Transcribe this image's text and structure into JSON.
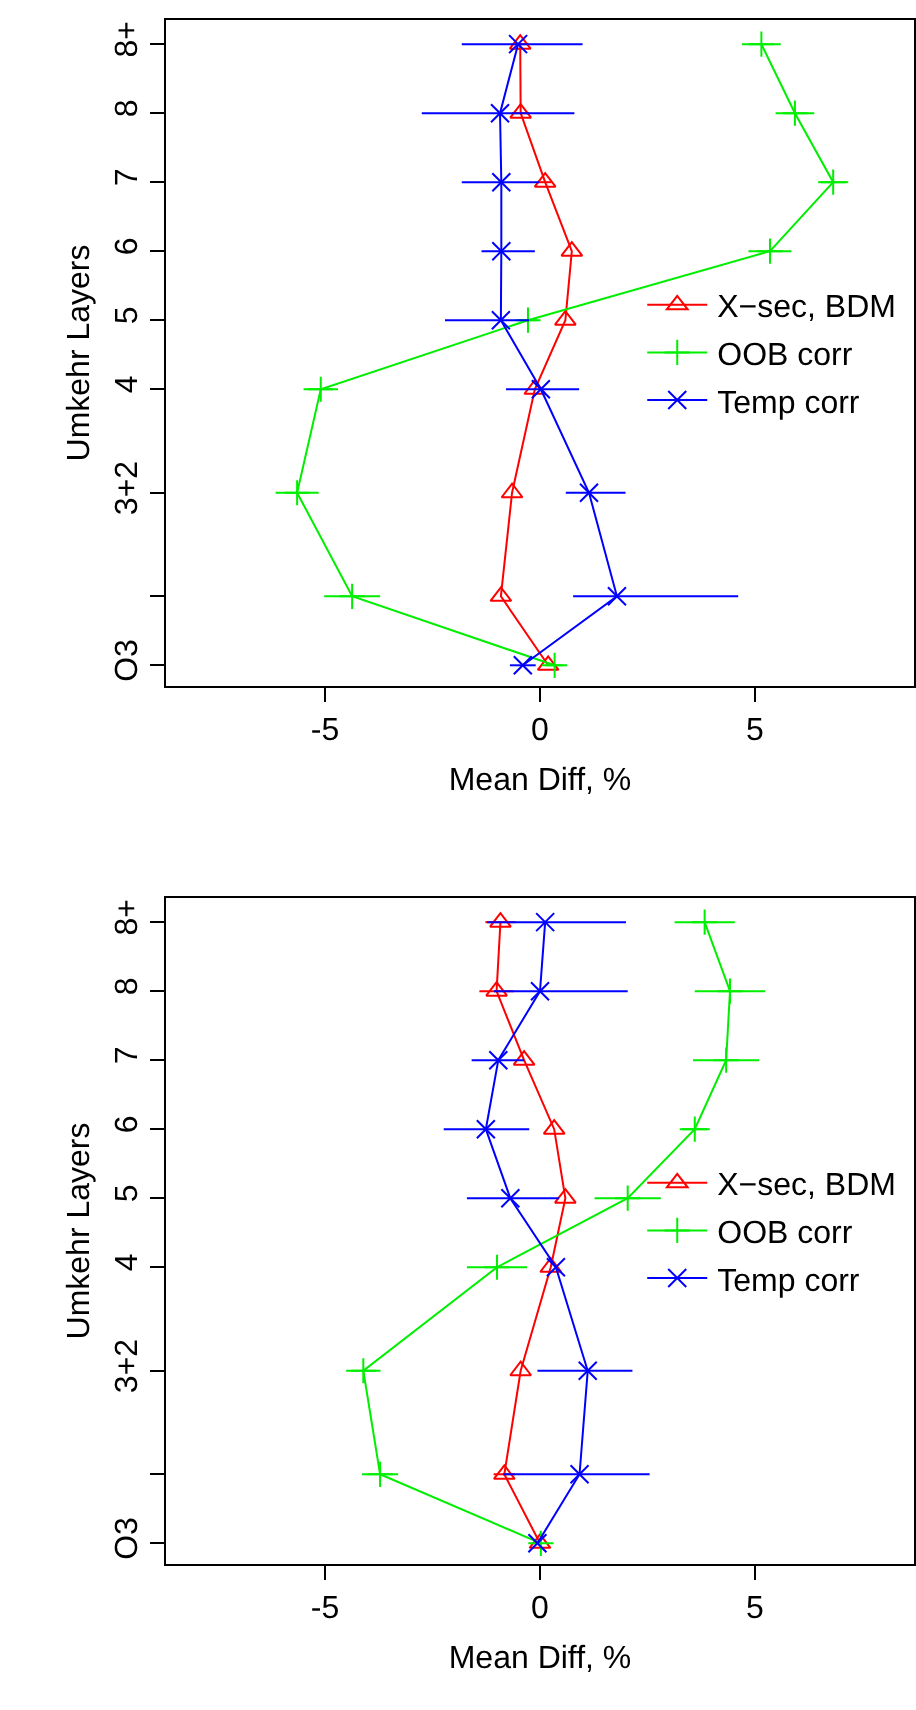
{
  "chart_data": [
    {
      "type": "line",
      "orientation": "horizontal",
      "xlabel": "Mean Diff, %",
      "ylabel": "Umkehr Layers",
      "x": [
        0,
        1,
        2.5,
        4,
        5,
        6,
        7,
        8,
        9
      ],
      "xlim": [
        -8.7,
        8.7
      ],
      "xticks": [
        -5,
        0,
        5
      ],
      "ylim": [
        -0.3,
        9.35
      ],
      "yticks": [
        {
          "value": 0,
          "label": "O3"
        },
        {
          "value": 1,
          "label": null
        },
        {
          "value": 2.5,
          "label": "3+2"
        },
        {
          "value": 4,
          "label": "4"
        },
        {
          "value": 5,
          "label": "5"
        },
        {
          "value": 6,
          "label": "6"
        },
        {
          "value": 7,
          "label": "7"
        },
        {
          "value": 8,
          "label": "8"
        },
        {
          "value": 9,
          "label": "8+"
        }
      ],
      "grid": false,
      "legend": "right",
      "series": [
        {
          "name": "X−sec, BDM",
          "color": "#ff0000",
          "marker": "triangle",
          "values": [
            0.19,
            -0.91,
            -0.65,
            -0.12,
            0.59,
            0.74,
            0.12,
            -0.45,
            -0.46
          ],
          "errors": [
            null,
            null,
            null,
            null,
            null,
            null,
            0.15,
            0.2,
            0.2
          ]
        },
        {
          "name": "OOB corr",
          "color": "#00ee00",
          "marker": "plus",
          "values": [
            0.34,
            -4.37,
            -5.65,
            -5.1,
            -0.28,
            5.35,
            6.82,
            5.93,
            5.15
          ],
          "errors": [
            0.2,
            0.65,
            0.5,
            0.4,
            0.2,
            0.5,
            0.35,
            0.45,
            0.45
          ]
        },
        {
          "name": "Temp corr",
          "color": "#0000ff",
          "marker": "cross",
          "values": [
            -0.4,
            1.79,
            1.14,
            0.02,
            -0.91,
            -0.9,
            -0.9,
            -0.93,
            -0.51
          ],
          "errors": [
            0.3,
            [
              0.77,
              4.61
            ],
            [
              0.6,
              1.99
            ],
            [
              -0.79,
              0.91
            ],
            [
              -2.21,
              -0.25
            ],
            [
              -1.36,
              -0.12
            ],
            [
              -1.82,
              -0.02
            ],
            [
              -2.75,
              0.8
            ],
            [
              -1.82,
              0.99
            ]
          ]
        }
      ]
    },
    {
      "type": "line",
      "orientation": "horizontal",
      "xlabel": "Mean Diff, %",
      "ylabel": "Umkehr Layers",
      "x": [
        0,
        1,
        2.5,
        4,
        5,
        6,
        7,
        8,
        9
      ],
      "xlim": [
        -8.7,
        8.7
      ],
      "xticks": [
        -5,
        0,
        5
      ],
      "ylim": [
        -0.3,
        9.35
      ],
      "yticks": [
        {
          "value": 0,
          "label": "O3"
        },
        {
          "value": 1,
          "label": null
        },
        {
          "value": 2.5,
          "label": "3+2"
        },
        {
          "value": 4,
          "label": "4"
        },
        {
          "value": 5,
          "label": "5"
        },
        {
          "value": 6,
          "label": "6"
        },
        {
          "value": 7,
          "label": "7"
        },
        {
          "value": 8,
          "label": "8"
        },
        {
          "value": 9,
          "label": "8+"
        }
      ],
      "grid": false,
      "legend": "right",
      "series": [
        {
          "name": "X−sec, BDM",
          "color": "#ff0000",
          "marker": "triangle",
          "values": [
            0,
            -0.83,
            -0.45,
            0.25,
            0.59,
            0.33,
            -0.37,
            -1.01,
            -0.92
          ],
          "errors": [
            null,
            0.25,
            null,
            null,
            null,
            null,
            null,
            0.4,
            0.35
          ]
        },
        {
          "name": "OOB corr",
          "color": "#00ee00",
          "marker": "plus",
          "values": [
            0.02,
            -3.72,
            -4.11,
            -1.0,
            2.04,
            3.6,
            4.33,
            4.42,
            3.83
          ],
          "errors": [
            null,
            0.42,
            0.4,
            0.7,
            0.77,
            0.35,
            0.77,
            0.82,
            0.7
          ]
        },
        {
          "name": "Temp corr",
          "color": "#0000ff",
          "marker": "cross",
          "values": [
            -0.06,
            0.92,
            1.11,
            0.37,
            -0.69,
            -1.26,
            -0.97,
            0,
            0.12
          ],
          "errors": [
            null,
            [
              -0.86,
              2.55
            ],
            [
              -0.06,
              2.15
            ],
            null,
            [
              -1.7,
              0.44
            ],
            [
              -2.24,
              -0.25
            ],
            [
              -1.59,
              -0.37
            ],
            [
              -1.07,
              2.04
            ],
            [
              -1.23,
              2.0
            ]
          ]
        }
      ]
    }
  ]
}
